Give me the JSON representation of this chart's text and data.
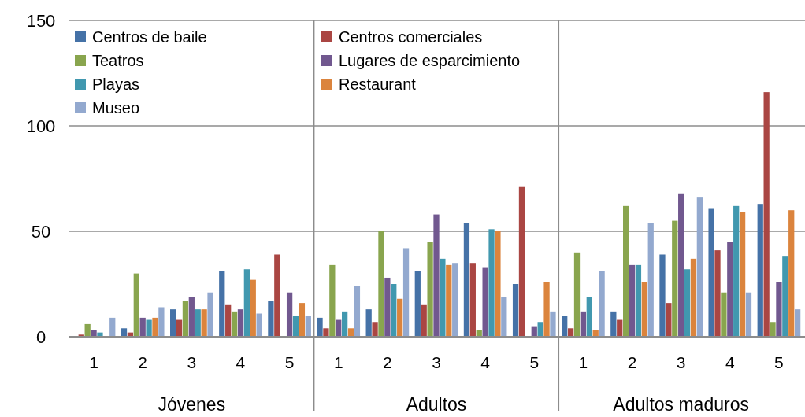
{
  "chart_data": {
    "type": "bar",
    "categories": [
      "1",
      "2",
      "3",
      "4",
      "5",
      "1",
      "2",
      "3",
      "4",
      "5",
      "1",
      "2",
      "3",
      "4",
      "5"
    ],
    "annotations": [
      "Jóvenes",
      "Adultos",
      "Adultos maduros"
    ],
    "series": [
      {
        "name": "Centros de baile",
        "color": "#4572a7",
        "values": [
          0,
          4,
          13,
          31,
          17,
          9,
          13,
          31,
          54,
          25,
          10,
          12,
          39,
          61,
          63
        ]
      },
      {
        "name": "Centros comerciales",
        "color": "#aa4643",
        "values": [
          1,
          2,
          8,
          15,
          39,
          4,
          7,
          15,
          35,
          71,
          4,
          8,
          16,
          41,
          116
        ]
      },
      {
        "name": "Teatros",
        "color": "#89a54e",
        "values": [
          6,
          30,
          17,
          12,
          0,
          34,
          50,
          45,
          3,
          0,
          40,
          62,
          55,
          21,
          7
        ]
      },
      {
        "name": "Lugares de esparcimiento",
        "color": "#71588f",
        "values": [
          3,
          9,
          19,
          13,
          21,
          8,
          28,
          58,
          33,
          5,
          12,
          34,
          68,
          45,
          26
        ]
      },
      {
        "name": "Playas",
        "color": "#4198af",
        "values": [
          2,
          8,
          13,
          32,
          10,
          12,
          25,
          37,
          51,
          7,
          19,
          34,
          32,
          62,
          38
        ]
      },
      {
        "name": "Restaurant",
        "color": "#db843d",
        "values": [
          0,
          9,
          13,
          27,
          16,
          4,
          18,
          34,
          50,
          26,
          3,
          26,
          37,
          59,
          60
        ]
      },
      {
        "name": "Museo",
        "color": "#93a9cf",
        "values": [
          9,
          14,
          21,
          11,
          10,
          24,
          42,
          35,
          19,
          12,
          31,
          54,
          66,
          21,
          13
        ]
      }
    ],
    "ylim": [
      0,
      150
    ],
    "yticks": [
      0,
      50,
      100,
      150
    ],
    "grid": "y",
    "legend": "top left"
  }
}
